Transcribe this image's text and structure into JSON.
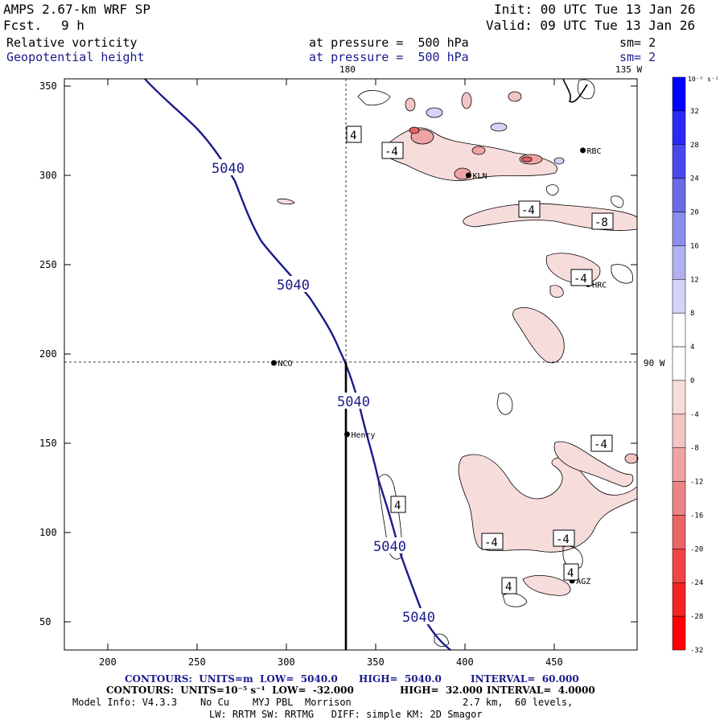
{
  "header": {
    "model": "AMPS 2.67-km WRF SP",
    "fcst_label": "Fcst.",
    "fcst_value": "9 h",
    "init": "Init: 00 UTC Tue 13 Jan 26",
    "valid": "Valid: 09 UTC Tue 13 Jan 26",
    "field1": "Relative vorticity",
    "field2": "Geopotential height",
    "pressure1": "at pressure =  500 hPa",
    "pressure2": "at pressure =  500 hPa",
    "sm1": "sm= 2",
    "sm2": "sm= 2"
  },
  "map": {
    "lon_180": "180",
    "lon_135w": "135 W",
    "lon_90w": "90 W",
    "x_ticks": [
      "200",
      "250",
      "300",
      "350",
      "400",
      "450"
    ],
    "y_ticks": [
      "350",
      "300",
      "250",
      "200",
      "150",
      "100",
      "50"
    ],
    "stations": [
      {
        "name": "RBC",
        "x": 466,
        "y": 314
      },
      {
        "name": "KLN",
        "x": 402,
        "y": 300
      },
      {
        "name": "HRC",
        "x": 469,
        "y": 239
      },
      {
        "name": "NCO",
        "x": 293,
        "y": 195
      },
      {
        "name": "Henry",
        "x": 334,
        "y": 155
      },
      {
        "name": "AGZ",
        "x": 460,
        "y": 73
      }
    ],
    "height_labels": [
      "5040",
      "5040",
      "5040",
      "5040",
      "5040"
    ],
    "vort_labels": [
      "4",
      "-4",
      "-4",
      "-8",
      "-4",
      "-4",
      "4",
      "-4",
      "-4",
      "4",
      "4"
    ]
  },
  "colorbar": {
    "unit": "10⁻⁵ s⁻¹",
    "levels": [
      "32",
      "28",
      "24",
      "20",
      "16",
      "12",
      "8",
      "4",
      "0",
      "-4",
      "-8",
      "-12",
      "-16",
      "-20",
      "-24",
      "-28",
      "-32"
    ],
    "colors": [
      "#0000ff",
      "#2a2af5",
      "#4848ec",
      "#6a6ae6",
      "#8c8cec",
      "#b0b0f2",
      "#d4d4f8",
      "#ffffff",
      "#ffffff",
      "#f7dcdc",
      "#f3c4c4",
      "#eea4a4",
      "#eb8484",
      "#eb6464",
      "#f04444",
      "#f52424",
      "#ff0000"
    ]
  },
  "footer": {
    "line1_a": "CONTOURS:  UNITS=m  LOW=  5040.0",
    "line1_b": "HIGH=  5040.0",
    "line1_c": "INTERVAL=  60.000",
    "line2_a": "CONTOURS:  UNITS=10⁻⁵ s⁻¹  LOW=  -32.000",
    "line2_b": "HIGH=  32.000",
    "line2_c": "INTERVAL=  4.0000",
    "line3_a": "Model Info: V4.3.3    No Cu    MYJ PBL  Morrison",
    "line3_b": "2.7 km,  60 levels,",
    "line4": "LW: RRTM SW: RRTMG   DIFF: simple KM: 2D Smagor"
  }
}
